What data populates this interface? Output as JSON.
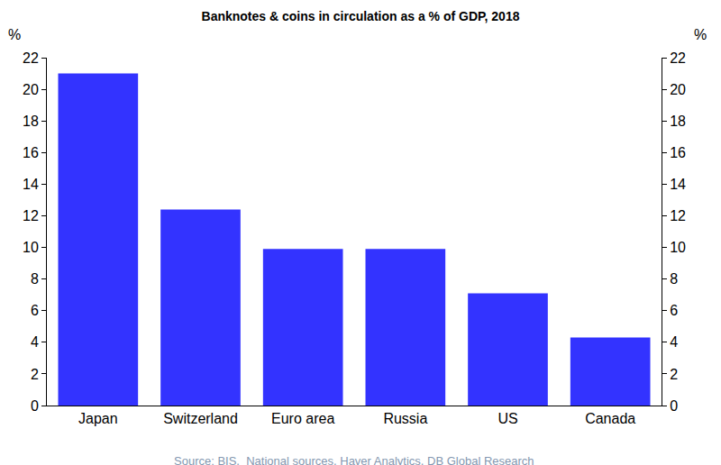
{
  "chart_data": {
    "type": "bar",
    "title": "Banknotes & coins in circulation as a % of GDP, 2018",
    "categories": [
      "Japan",
      "Switzerland",
      "Euro area",
      "Russia",
      "US",
      "Canada"
    ],
    "values": [
      21.0,
      12.4,
      9.9,
      9.9,
      7.1,
      4.3
    ],
    "color": "#3333ff",
    "ylabel": "%",
    "y2label": "%",
    "ylim": [
      0,
      22
    ],
    "yticks": [
      0,
      2,
      4,
      6,
      8,
      10,
      12,
      14,
      16,
      18,
      20,
      22
    ],
    "y2lim": [
      0,
      22
    ],
    "y2ticks": [
      0,
      2,
      4,
      6,
      8,
      10,
      12,
      14,
      16,
      18,
      20,
      22
    ],
    "source": "Source: BIS,  National sources, Haver Analytics, DB Global Research",
    "grid": false
  }
}
